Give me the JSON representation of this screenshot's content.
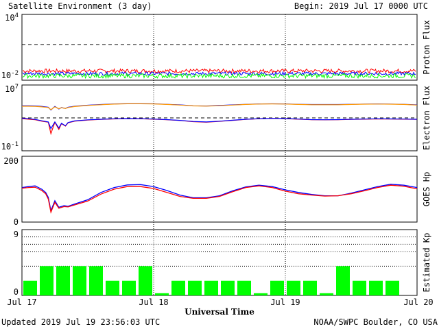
{
  "header": {
    "title": "Satellite Environment (3 day)",
    "begin": "Begin:  2019 Jul 17 0000 UTC"
  },
  "footer": {
    "updated": "Updated 2019 Jul 19 23:56:03 UTC",
    "credit": "NOAA/SWPC Boulder, CO USA",
    "xlabel": "Universal Time"
  },
  "x_ticks": [
    "Jul 17",
    "Jul 18",
    "Jul 19",
    "Jul 20"
  ],
  "colors": {
    "red": "#ff0000",
    "blue": "#0000ff",
    "green": "#00ff00",
    "orange": "#ff9900",
    "kp_bar": "#00ff00"
  },
  "chart_data": [
    {
      "type": "line",
      "panel": "proton",
      "ylabel": "Proton Flux",
      "yscale": "log",
      "ylim": [
        0.01,
        10000
      ],
      "ytick_labels": [
        "10^4",
        "10^-2"
      ],
      "threshold": 10,
      "x_range_days": [
        0,
        3
      ],
      "series": [
        {
          "color": "red",
          "level": 0.07,
          "noise": 0.18
        },
        {
          "color": "blue",
          "level": 0.04,
          "noise": 0.15
        },
        {
          "color": "green",
          "level": 0.025,
          "noise": 0.2
        }
      ]
    },
    {
      "type": "line",
      "panel": "electron",
      "ylabel": "Electron Flux",
      "yscale": "log",
      "ylim": [
        0.1,
        10000000
      ],
      "ytick_labels": [
        "10^7",
        "10^-1"
      ],
      "threshold": 1000,
      "series": [
        {
          "color": "blue",
          "x": [
            0,
            0.05,
            0.1,
            0.15,
            0.2,
            0.22,
            0.25,
            0.28,
            0.3,
            0.33,
            0.35,
            0.4,
            0.5,
            0.6,
            0.7,
            0.8,
            0.9,
            1.0,
            1.1,
            1.2,
            1.3,
            1.4,
            1.5,
            1.6,
            1.7,
            1.8,
            1.9,
            2.0,
            2.1,
            2.2,
            2.3,
            2.4,
            2.5,
            2.6,
            2.7,
            2.8,
            2.9,
            3.0
          ],
          "values": [
            30000,
            30000,
            28000,
            25000,
            20000,
            9000,
            25000,
            12000,
            18000,
            14000,
            20000,
            26000,
            35000,
            42000,
            50000,
            55000,
            55000,
            52000,
            45000,
            38000,
            30000,
            28000,
            32000,
            38000,
            45000,
            50000,
            52000,
            50000,
            45000,
            42000,
            42000,
            42000,
            45000,
            48000,
            50000,
            48000,
            45000,
            38000
          ]
        },
        {
          "color": "orange",
          "x": [
            0,
            0.05,
            0.1,
            0.15,
            0.2,
            0.22,
            0.25,
            0.28,
            0.3,
            0.33,
            0.35,
            0.4,
            0.5,
            0.6,
            0.7,
            0.8,
            0.9,
            1.0,
            1.1,
            1.2,
            1.3,
            1.4,
            1.5,
            1.6,
            1.7,
            1.8,
            1.9,
            2.0,
            2.1,
            2.2,
            2.3,
            2.4,
            2.5,
            2.6,
            2.7,
            2.8,
            2.9,
            3.0
          ],
          "values": [
            26000,
            26000,
            25000,
            22000,
            18000,
            10000,
            22000,
            13000,
            17000,
            14000,
            18000,
            24000,
            32000,
            40000,
            47000,
            52000,
            52000,
            50000,
            43000,
            36000,
            29000,
            27000,
            30000,
            36000,
            43000,
            48000,
            50000,
            48000,
            43000,
            40000,
            40000,
            40000,
            43000,
            46000,
            48000,
            46000,
            43000,
            36000
          ]
        },
        {
          "color": "red",
          "x": [
            0,
            0.05,
            0.1,
            0.15,
            0.2,
            0.22,
            0.25,
            0.28,
            0.3,
            0.33,
            0.35,
            0.4,
            0.5,
            0.6,
            0.7,
            0.8,
            0.9,
            1.0,
            1.1,
            1.2,
            1.3,
            1.4,
            1.5,
            1.6,
            1.7,
            1.8,
            1.9,
            2.0,
            2.1,
            2.2,
            2.3,
            2.4,
            2.5,
            2.6,
            2.7,
            2.8,
            2.9,
            3.0
          ],
          "values": [
            800,
            700,
            600,
            400,
            300,
            12,
            300,
            40,
            200,
            100,
            250,
            400,
            550,
            650,
            750,
            800,
            780,
            700,
            600,
            480,
            350,
            300,
            380,
            500,
            650,
            780,
            850,
            800,
            700,
            600,
            580,
            600,
            650,
            700,
            750,
            720,
            700,
            650
          ]
        },
        {
          "color": "blue",
          "x": [
            0,
            0.05,
            0.1,
            0.15,
            0.2,
            0.22,
            0.25,
            0.28,
            0.3,
            0.33,
            0.35,
            0.4,
            0.5,
            0.6,
            0.7,
            0.8,
            0.9,
            1.0,
            1.1,
            1.2,
            1.3,
            1.4,
            1.5,
            1.6,
            1.7,
            1.8,
            1.9,
            2.0,
            2.1,
            2.2,
            2.3,
            2.4,
            2.5,
            2.6,
            2.7,
            2.8,
            2.9,
            3.0
          ],
          "values": [
            900,
            800,
            650,
            450,
            320,
            50,
            320,
            60,
            220,
            110,
            270,
            430,
            580,
            680,
            780,
            820,
            800,
            720,
            620,
            500,
            370,
            320,
            400,
            520,
            680,
            800,
            880,
            830,
            720,
            620,
            600,
            620,
            680,
            720,
            780,
            750,
            720,
            680
          ]
        }
      ]
    },
    {
      "type": "line",
      "panel": "hp",
      "ylabel": "GOES Hp",
      "ylim": [
        0,
        200
      ],
      "ytick_labels": [
        "200",
        "0"
      ],
      "series": [
        {
          "color": "blue",
          "x": [
            0,
            0.05,
            0.1,
            0.15,
            0.18,
            0.2,
            0.22,
            0.25,
            0.28,
            0.32,
            0.35,
            0.4,
            0.5,
            0.6,
            0.7,
            0.8,
            0.9,
            1.0,
            1.1,
            1.2,
            1.3,
            1.4,
            1.5,
            1.6,
            1.7,
            1.8,
            1.9,
            2.0,
            2.1,
            2.2,
            2.3,
            2.4,
            2.5,
            2.6,
            2.7,
            2.8,
            2.9,
            3.0
          ],
          "values": [
            105,
            108,
            110,
            100,
            90,
            75,
            35,
            65,
            45,
            50,
            48,
            55,
            68,
            90,
            105,
            113,
            114,
            108,
            96,
            82,
            74,
            74,
            80,
            95,
            107,
            112,
            108,
            98,
            90,
            84,
            80,
            80,
            88,
            98,
            108,
            115,
            112,
            105
          ]
        },
        {
          "color": "red",
          "x": [
            0,
            0.05,
            0.1,
            0.15,
            0.18,
            0.2,
            0.22,
            0.25,
            0.28,
            0.32,
            0.35,
            0.4,
            0.5,
            0.6,
            0.7,
            0.8,
            0.9,
            1.0,
            1.1,
            1.2,
            1.3,
            1.4,
            1.5,
            1.6,
            1.7,
            1.8,
            1.9,
            2.0,
            2.1,
            2.2,
            2.3,
            2.4,
            2.5,
            2.6,
            2.7,
            2.8,
            2.9,
            3.0
          ],
          "values": [
            103,
            105,
            106,
            96,
            86,
            70,
            30,
            60,
            42,
            47,
            46,
            52,
            64,
            85,
            100,
            108,
            108,
            102,
            90,
            78,
            72,
            72,
            78,
            92,
            105,
            110,
            105,
            94,
            86,
            82,
            79,
            80,
            86,
            95,
            105,
            112,
            109,
            101
          ]
        }
      ]
    },
    {
      "type": "bar",
      "panel": "kp",
      "ylabel": "Estimated Kp",
      "ylim": [
        0,
        9
      ],
      "ytick_labels": [
        "9",
        "0"
      ],
      "gridlines": [
        4,
        6,
        7,
        8
      ],
      "values": [
        2,
        4,
        4,
        4,
        4,
        2,
        2,
        4,
        0.3,
        2,
        2,
        2,
        2,
        2,
        0.3,
        2,
        2,
        2,
        0.3,
        4,
        2,
        2,
        2,
        0
      ]
    }
  ]
}
